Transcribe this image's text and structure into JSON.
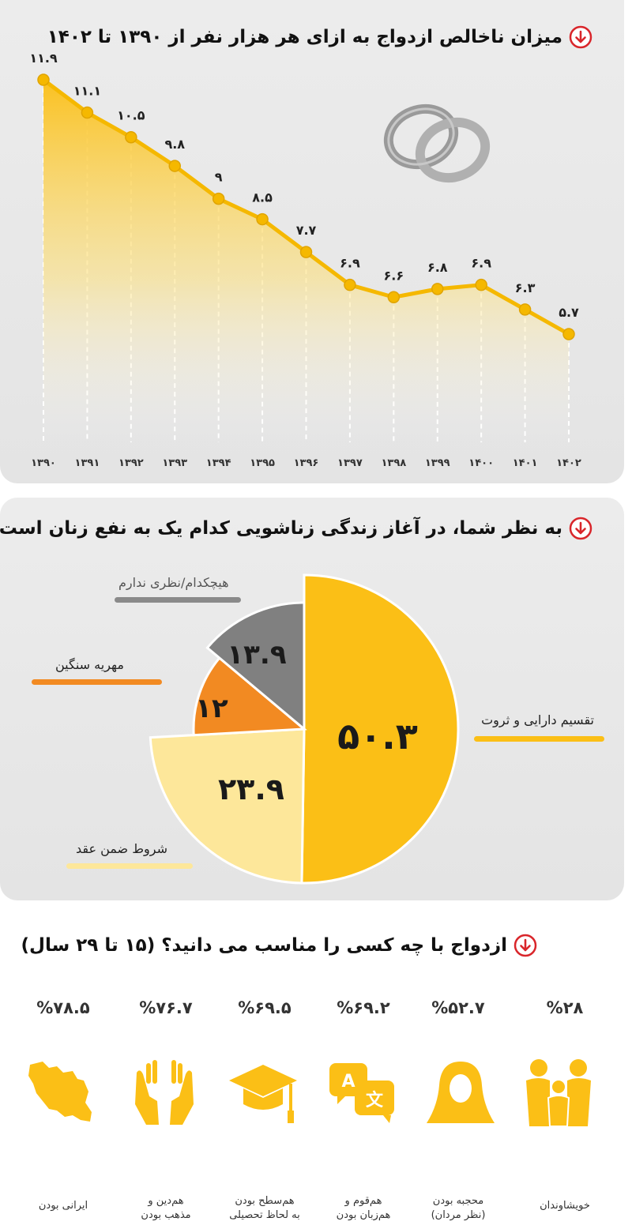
{
  "line_section": {
    "title": "میزان ناخالص ازدواج به ازای هر هزار نفر از ۱۳۹۰ تا ۱۴۰۲"
  },
  "pie_section": {
    "title": "به نظر شما، در آغاز زندگی زناشویی کدام یک به نفع زنان است؟"
  },
  "criteria_section": {
    "title": "ازدواج با چه کسی را مناسب می دانید؟ (۱۵ تا ۲۹ سال)",
    "items": [
      {
        "label_1": "ایرانی بودن",
        "label_2": "",
        "value": "%۷۸.۵",
        "icon": "iran-map-icon"
      },
      {
        "label_1": "هم‌دین و",
        "label_2": "مذهب بودن",
        "value": "%۷۶.۷",
        "icon": "praying-hands-icon"
      },
      {
        "label_1": "هم‌سطح بودن",
        "label_2": "به لحاظ تحصیلی",
        "value": "%۶۹.۵",
        "icon": "graduation-cap-icon"
      },
      {
        "label_1": "هم‌قوم و",
        "label_2": "هم‌زبان بودن",
        "value": "%۶۹.۲",
        "icon": "translate-icon"
      },
      {
        "label_1": "محجبه بودن",
        "label_2": "(نظر مردان)",
        "value": "%۵۲.۷",
        "icon": "hijab-woman-icon"
      },
      {
        "label_1": "خویشاوندان",
        "label_2": "",
        "value": "%۲۸",
        "icon": "family-icon"
      }
    ]
  },
  "colors": {
    "accent_yellow": "#fbbf16",
    "light_yellow": "#fde79a",
    "orange": "#f28a22",
    "gray": "#808080",
    "red_icon": "#d9262b"
  },
  "chart_data": [
    {
      "type": "area",
      "title": "میزان ناخالص ازدواج به ازای هر هزار نفر از ۱۳۹۰ تا ۱۴۰۲",
      "categories": [
        "۱۳۹۰",
        "۱۳۹۱",
        "۱۳۹۲",
        "۱۳۹۳",
        "۱۳۹۴",
        "۱۳۹۵",
        "۱۳۹۶",
        "۱۳۹۷",
        "۱۳۹۸",
        "۱۳۹۹",
        "۱۴۰۰",
        "۱۴۰۱",
        "۱۴۰۲"
      ],
      "values": [
        11.9,
        11.1,
        10.5,
        9.8,
        9,
        8.5,
        7.7,
        6.9,
        6.6,
        6.8,
        6.9,
        6.3,
        5.7
      ],
      "value_labels": [
        "۱۱.۹",
        "۱۱.۱",
        "۱۰.۵",
        "۹.۸",
        "۹",
        "۸.۵",
        "۷.۷",
        "۶.۹",
        "۶.۶",
        "۶.۸",
        "۶.۹",
        "۶.۳",
        "۵.۷"
      ],
      "grid": "vertical-dashed",
      "icon": "wedding-rings-icon"
    },
    {
      "type": "pie",
      "title": "به نظر شما، در آغاز زندگی زناشویی کدام یک به نفع زنان است؟",
      "slices": [
        {
          "name": "تقسیم دارایی و ثروت",
          "value": 50.3,
          "label": "۵۰.۳",
          "color": "#fbbf16"
        },
        {
          "name": "شروط ضمن عقد",
          "value": 23.9,
          "label": "۲۳.۹",
          "color": "#fde79a"
        },
        {
          "name": "مهریه سنگین",
          "value": 12,
          "label": "۱۲",
          "color": "#f28a22"
        },
        {
          "name": "هیچکدام/نظری ندارم",
          "value": 13.9,
          "label": "۱۳.۹",
          "color": "#808080"
        }
      ]
    }
  ]
}
